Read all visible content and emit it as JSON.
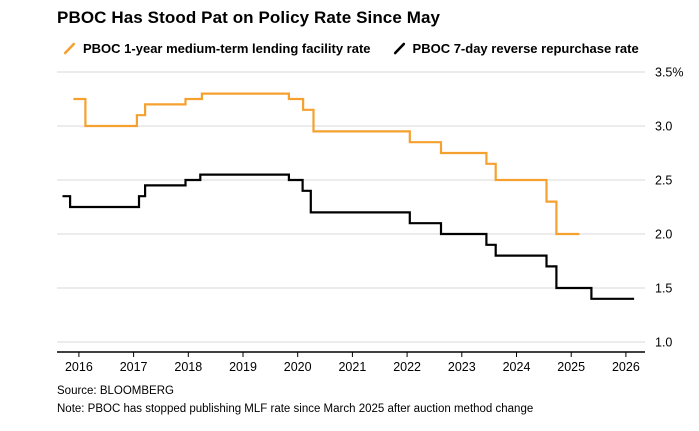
{
  "header": {
    "title": "PBOC Has Stood Pat on Policy Rate Since May"
  },
  "legend": [
    {
      "label": "PBOC 1-year medium-term lending facility rate",
      "color": "#f5a12f"
    },
    {
      "label": "PBOC 7-day reverse repurchase rate",
      "color": "#000000"
    }
  ],
  "footer": {
    "source": "Source: BLOOMBERG",
    "note": "Note: PBOC has stopped publishing MLF rate since March 2025 after auction method change"
  },
  "chart_data": {
    "type": "line",
    "line_style": "step-after",
    "title": "PBOC Has Stood Pat on Policy Rate Since May",
    "xlabel": "",
    "ylabel": "%",
    "xlim": [
      2015.6,
      2026.35
    ],
    "ylim": [
      1.0,
      3.5
    ],
    "x_ticks": [
      2016,
      2017,
      2018,
      2019,
      2020,
      2021,
      2022,
      2023,
      2024,
      2025,
      2026
    ],
    "y_ticks": [
      1.0,
      1.5,
      2.0,
      2.5,
      3.0,
      3.5
    ],
    "y_tick_labels": [
      "1.0",
      "1.5",
      "2.0",
      "2.5",
      "3.0",
      "3.5%"
    ],
    "grid": true,
    "legend_position": "top",
    "annotation": "PBOC has stopped publishing MLF rate since March 2025 after auction method change",
    "series": [
      {
        "id": "mlf-rate",
        "name": "PBOC 1-year medium-term lending facility rate",
        "color": "#f5a12f",
        "points": [
          [
            2015.9,
            3.25
          ],
          [
            2016.12,
            3.0
          ],
          [
            2017.06,
            3.1
          ],
          [
            2017.21,
            3.2
          ],
          [
            2017.95,
            3.25
          ],
          [
            2018.25,
            3.3
          ],
          [
            2019.84,
            3.25
          ],
          [
            2020.1,
            3.15
          ],
          [
            2020.29,
            2.95
          ],
          [
            2022.05,
            2.85
          ],
          [
            2022.62,
            2.75
          ],
          [
            2023.45,
            2.65
          ],
          [
            2023.62,
            2.5
          ],
          [
            2024.55,
            2.3
          ],
          [
            2024.73,
            2.0
          ],
          [
            2025.15,
            2.0
          ]
        ]
      },
      {
        "id": "reverse-repo",
        "name": "PBOC 7-day reverse repurchase rate",
        "color": "#000000",
        "points": [
          [
            2015.7,
            2.35
          ],
          [
            2015.84,
            2.25
          ],
          [
            2017.1,
            2.35
          ],
          [
            2017.21,
            2.45
          ],
          [
            2017.95,
            2.5
          ],
          [
            2018.22,
            2.55
          ],
          [
            2019.84,
            2.5
          ],
          [
            2020.09,
            2.4
          ],
          [
            2020.24,
            2.2
          ],
          [
            2022.05,
            2.1
          ],
          [
            2022.62,
            2.0
          ],
          [
            2023.45,
            1.9
          ],
          [
            2023.62,
            1.8
          ],
          [
            2024.55,
            1.7
          ],
          [
            2024.73,
            1.5
          ],
          [
            2025.37,
            1.4
          ],
          [
            2026.15,
            1.4
          ]
        ]
      }
    ]
  }
}
